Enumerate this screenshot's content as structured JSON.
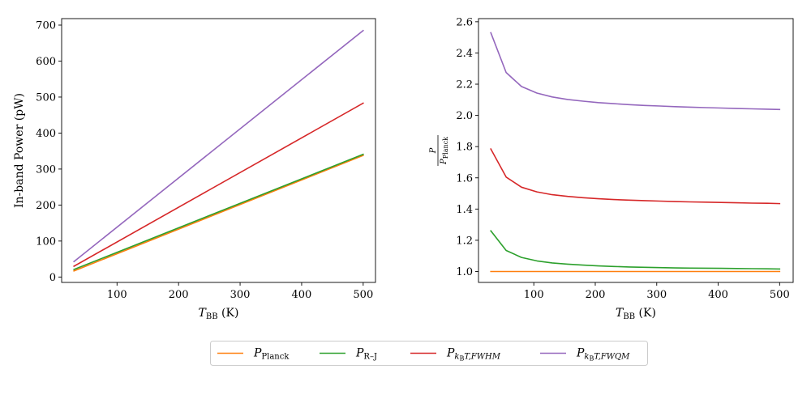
{
  "colors": {
    "planck": "#ff7f0e",
    "rj": "#2ca02c",
    "fwhm": "#d62728",
    "fwqm": "#9467bd",
    "axis": "#000000",
    "background": "#ffffff"
  },
  "legend": {
    "entries": [
      {
        "key": "planck",
        "main": "P",
        "sub": "Planck",
        "subsub": ""
      },
      {
        "key": "rj",
        "main": "P",
        "sub": "R–J",
        "subsub": ""
      },
      {
        "key": "fwhm",
        "main": "P",
        "sub": "k",
        "subsub": "B",
        "tail": "T,FWHM"
      },
      {
        "key": "fwqm",
        "main": "P",
        "sub": "k",
        "subsub": "B",
        "tail": "T,FWQM"
      }
    ]
  },
  "chart_data": [
    {
      "type": "line",
      "xlabel": {
        "main": "T",
        "sub": "BB",
        "unit": " (K)"
      },
      "ylabel": "In-band Power (pW)",
      "xlim": [
        10,
        520
      ],
      "ylim": [
        -15,
        718
      ],
      "xticks": [
        100,
        200,
        300,
        400,
        500
      ],
      "yticks": [
        0,
        100,
        200,
        300,
        400,
        500,
        600,
        700
      ],
      "x": [
        30,
        500
      ],
      "series": [
        {
          "key": "planck",
          "values": [
            17,
            338
          ]
        },
        {
          "key": "rj",
          "values": [
            21,
            341
          ]
        },
        {
          "key": "fwhm",
          "values": [
            30,
            483
          ]
        },
        {
          "key": "fwqm",
          "values": [
            43,
            685
          ]
        }
      ]
    },
    {
      "type": "line",
      "xlabel": {
        "main": "T",
        "sub": "BB",
        "unit": " (K)"
      },
      "ylabel": {
        "num": "P",
        "den": "P",
        "den_sub": "Planck"
      },
      "xlim": [
        10,
        522
      ],
      "ylim": [
        0.93,
        2.62
      ],
      "xticks": [
        100,
        200,
        300,
        400,
        500
      ],
      "yticks": [
        1.0,
        1.2,
        1.4,
        1.6,
        1.8,
        2.0,
        2.2,
        2.4,
        2.6
      ],
      "x": [
        30,
        55,
        80,
        105,
        130,
        155,
        180,
        205,
        230,
        255,
        280,
        305,
        330,
        355,
        380,
        405,
        430,
        455,
        480,
        500
      ],
      "series": [
        {
          "key": "planck",
          "values": [
            1.0,
            1.0,
            1.0,
            1.0,
            1.0,
            1.0,
            1.0,
            1.0,
            1.0,
            1.0,
            1.0,
            1.0,
            1.0,
            1.0,
            1.0,
            1.0,
            1.0,
            1.0,
            1.0,
            1.0
          ]
        },
        {
          "key": "rj",
          "values": [
            1.26,
            1.135,
            1.09,
            1.068,
            1.055,
            1.047,
            1.041,
            1.036,
            1.032,
            1.029,
            1.027,
            1.025,
            1.023,
            1.022,
            1.021,
            1.02,
            1.019,
            1.018,
            1.017,
            1.016
          ]
        },
        {
          "key": "fwhm",
          "values": [
            1.785,
            1.605,
            1.54,
            1.51,
            1.492,
            1.481,
            1.473,
            1.466,
            1.461,
            1.457,
            1.454,
            1.451,
            1.448,
            1.446,
            1.444,
            1.442,
            1.44,
            1.438,
            1.437,
            1.435
          ]
        },
        {
          "key": "fwqm",
          "values": [
            2.53,
            2.275,
            2.185,
            2.143,
            2.118,
            2.102,
            2.091,
            2.082,
            2.075,
            2.069,
            2.064,
            2.06,
            2.056,
            2.053,
            2.05,
            2.047,
            2.044,
            2.042,
            2.04,
            2.038
          ]
        }
      ]
    }
  ]
}
